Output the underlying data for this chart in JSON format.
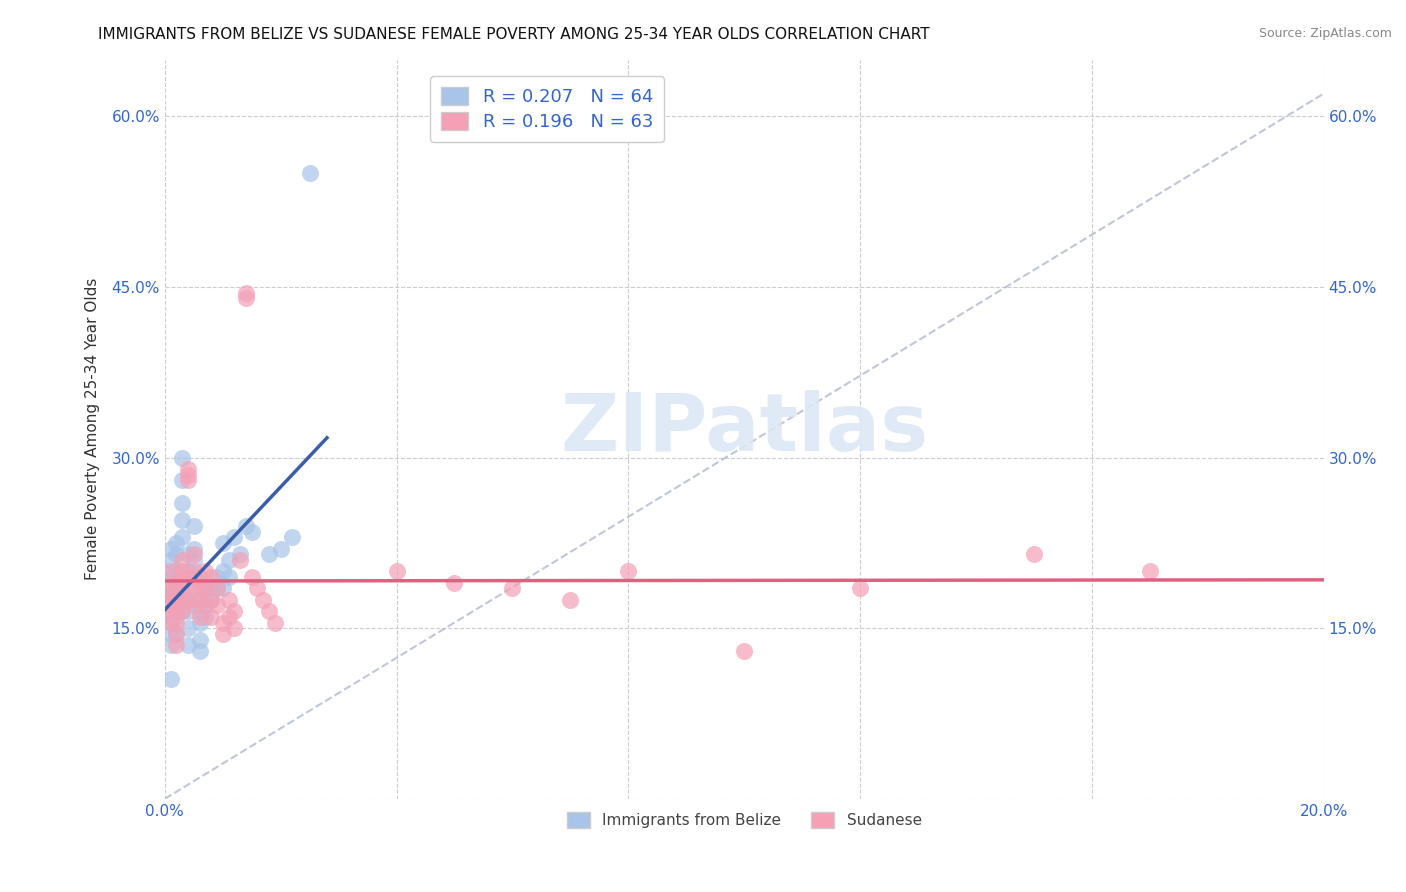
{
  "title": "IMMIGRANTS FROM BELIZE VS SUDANESE FEMALE POVERTY AMONG 25-34 YEAR OLDS CORRELATION CHART",
  "source": "Source: ZipAtlas.com",
  "ylabel": "Female Poverty Among 25-34 Year Olds",
  "xlim": [
    0.0,
    0.2
  ],
  "ylim": [
    0.0,
    0.65
  ],
  "xtick_vals": [
    0.0,
    0.04,
    0.08,
    0.12,
    0.16,
    0.2
  ],
  "xticklabels": [
    "0.0%",
    "",
    "",
    "",
    "",
    "20.0%"
  ],
  "ytick_vals": [
    0.0,
    0.15,
    0.3,
    0.45,
    0.6
  ],
  "yticklabels": [
    "",
    "15.0%",
    "30.0%",
    "45.0%",
    "60.0%"
  ],
  "legend_r1": "R = 0.207",
  "legend_n1": "N = 64",
  "legend_r2": "R = 0.196",
  "legend_n2": "N = 63",
  "series1_label": "Immigrants from Belize",
  "series2_label": "Sudanese",
  "scatter_color1": "#a8c4e8",
  "scatter_edge1": "#7aaad4",
  "scatter_color2": "#f4a0b5",
  "scatter_edge2": "#e07090",
  "line_color1": "#3a5fa8",
  "line_color2": "#e06080",
  "ref_line_color": "#b0b8d0",
  "watermark": "ZIPatlas",
  "background_color": "#ffffff",
  "title_fontsize": 11,
  "belize_x": [
    0.0,
    0.0,
    0.001,
    0.001,
    0.001,
    0.001,
    0.001,
    0.001,
    0.001,
    0.001,
    0.001,
    0.001,
    0.002,
    0.002,
    0.002,
    0.002,
    0.002,
    0.002,
    0.002,
    0.002,
    0.002,
    0.003,
    0.003,
    0.003,
    0.003,
    0.003,
    0.003,
    0.003,
    0.004,
    0.004,
    0.004,
    0.004,
    0.004,
    0.004,
    0.004,
    0.005,
    0.005,
    0.005,
    0.005,
    0.005,
    0.006,
    0.006,
    0.006,
    0.006,
    0.007,
    0.007,
    0.007,
    0.008,
    0.008,
    0.009,
    0.009,
    0.01,
    0.01,
    0.01,
    0.011,
    0.011,
    0.012,
    0.013,
    0.014,
    0.015,
    0.018,
    0.02,
    0.022,
    0.025
  ],
  "belize_y": [
    0.185,
    0.2,
    0.155,
    0.17,
    0.18,
    0.195,
    0.21,
    0.22,
    0.16,
    0.145,
    0.135,
    0.105,
    0.175,
    0.19,
    0.2,
    0.215,
    0.225,
    0.17,
    0.185,
    0.16,
    0.145,
    0.23,
    0.245,
    0.28,
    0.3,
    0.26,
    0.175,
    0.165,
    0.215,
    0.2,
    0.185,
    0.175,
    0.165,
    0.15,
    0.135,
    0.21,
    0.22,
    0.24,
    0.195,
    0.175,
    0.165,
    0.155,
    0.14,
    0.13,
    0.185,
    0.175,
    0.16,
    0.185,
    0.175,
    0.195,
    0.185,
    0.225,
    0.2,
    0.185,
    0.21,
    0.195,
    0.23,
    0.215,
    0.24,
    0.235,
    0.215,
    0.22,
    0.23,
    0.55
  ],
  "sudanese_x": [
    0.0,
    0.0,
    0.001,
    0.001,
    0.001,
    0.001,
    0.001,
    0.002,
    0.002,
    0.002,
    0.002,
    0.002,
    0.002,
    0.003,
    0.003,
    0.003,
    0.003,
    0.003,
    0.003,
    0.004,
    0.004,
    0.004,
    0.004,
    0.004,
    0.005,
    0.005,
    0.005,
    0.005,
    0.006,
    0.006,
    0.006,
    0.006,
    0.007,
    0.007,
    0.007,
    0.008,
    0.008,
    0.008,
    0.009,
    0.009,
    0.01,
    0.01,
    0.011,
    0.011,
    0.012,
    0.012,
    0.013,
    0.014,
    0.014,
    0.015,
    0.016,
    0.017,
    0.018,
    0.019,
    0.04,
    0.05,
    0.06,
    0.07,
    0.08,
    0.1,
    0.12,
    0.15,
    0.17
  ],
  "sudanese_y": [
    0.18,
    0.165,
    0.155,
    0.175,
    0.185,
    0.17,
    0.2,
    0.19,
    0.175,
    0.165,
    0.155,
    0.145,
    0.135,
    0.2,
    0.185,
    0.175,
    0.21,
    0.195,
    0.165,
    0.195,
    0.28,
    0.29,
    0.285,
    0.175,
    0.215,
    0.2,
    0.185,
    0.17,
    0.195,
    0.185,
    0.175,
    0.16,
    0.2,
    0.185,
    0.17,
    0.195,
    0.175,
    0.16,
    0.185,
    0.17,
    0.155,
    0.145,
    0.175,
    0.16,
    0.165,
    0.15,
    0.21,
    0.44,
    0.445,
    0.195,
    0.185,
    0.175,
    0.165,
    0.155,
    0.2,
    0.19,
    0.185,
    0.175,
    0.2,
    0.13,
    0.185,
    0.215,
    0.2
  ]
}
